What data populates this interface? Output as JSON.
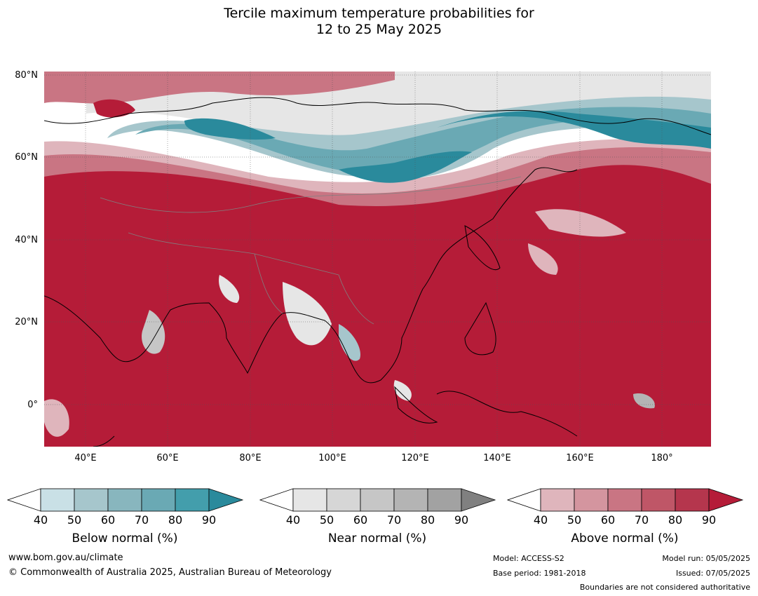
{
  "title_line1": "Tercile maximum temperature probabilities for",
  "title_line2": "12 to 25 May 2025",
  "lat_labels": [
    "80°N",
    "60°N",
    "40°N",
    "20°N",
    "0°"
  ],
  "lon_labels": [
    "40°E",
    "60°E",
    "80°E",
    "100°E",
    "120°E",
    "140°E",
    "160°E",
    "180°"
  ],
  "colorbars": [
    {
      "label": "Below normal (%)",
      "ticks": [
        "40",
        "50",
        "60",
        "70",
        "80",
        "90"
      ],
      "colors": [
        "#ffffff",
        "#c9e0e6",
        "#a6c6cc",
        "#88b6be",
        "#6aa9b4",
        "#439eac",
        "#2a8a9c"
      ]
    },
    {
      "label": "Near normal (%)",
      "ticks": [
        "40",
        "50",
        "60",
        "70",
        "80",
        "90"
      ],
      "colors": [
        "#ffffff",
        "#e6e6e6",
        "#d6d6d6",
        "#c6c6c6",
        "#b4b4b4",
        "#a2a2a2",
        "#808080"
      ]
    },
    {
      "label": "Above normal (%)",
      "ticks": [
        "40",
        "50",
        "60",
        "70",
        "80",
        "90"
      ],
      "colors": [
        "#ffffff",
        "#dfb5bc",
        "#d4959f",
        "#c97583",
        "#bf5667",
        "#b5364d",
        "#b51c38"
      ]
    }
  ],
  "footer": {
    "website": "www.bom.gov.au/climate",
    "copyright": "© Commonwealth of Australia 2025, Australian Bureau of Meteorology",
    "model": "Model: ACCESS-S2",
    "base_period": "Base period: 1981-2018",
    "model_run": "Model run: 05/05/2025",
    "issued": "Issued: 07/05/2025",
    "disclaimer": "Boundaries are not considered authoritative"
  }
}
